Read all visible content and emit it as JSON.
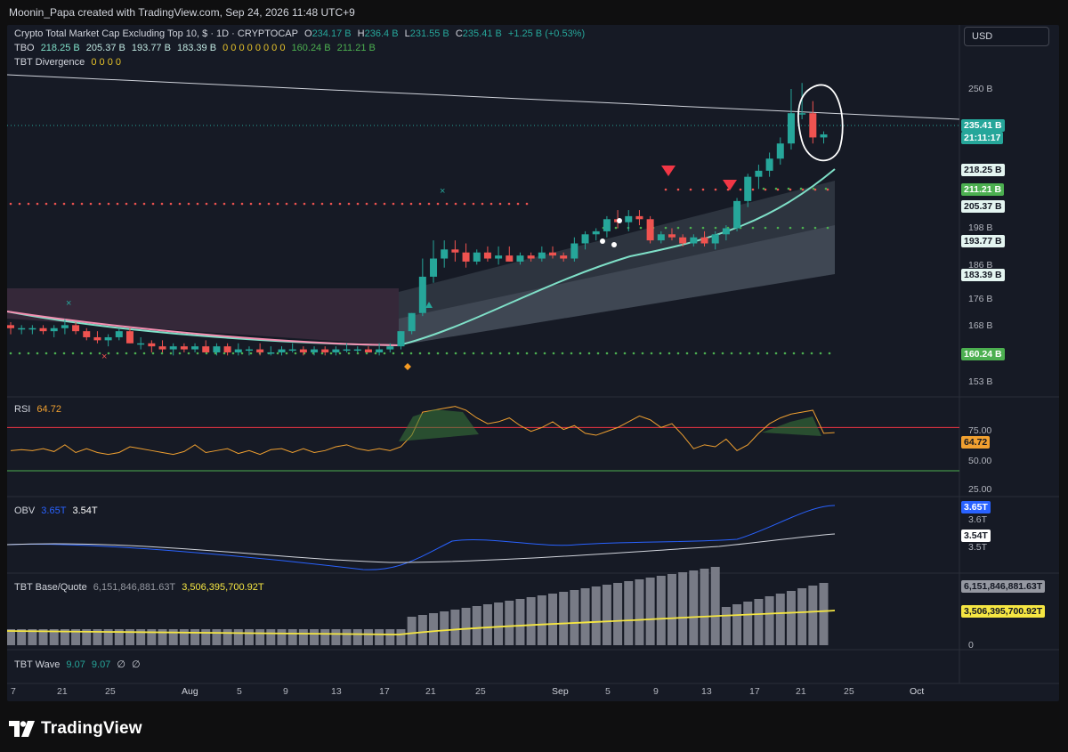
{
  "header": {
    "credit": "Moonin_Papa created with TradingView.com, Sep 24, 2026 11:48 UTC+9"
  },
  "symbol": {
    "name": "Crypto Total Market Cap Excluding Top 10, $ · 1D · CRYPTOCAP",
    "o_label": "O",
    "o": "234.17 B",
    "h_label": "H",
    "h": "236.4 B",
    "l_label": "L",
    "l": "231.55 B",
    "c_label": "C",
    "c": "235.41 B",
    "change": "+1.25 B (+0.53%)"
  },
  "tbo": {
    "label": "TBO",
    "v1": "218.25 B",
    "v2": "205.37 B",
    "v3": "193.77 B",
    "v4": "183.39 B",
    "zeros": "0 0 0 0 0 0 0 0",
    "v5": "160.24 B",
    "v6": "211.21 B"
  },
  "tbt_div": {
    "label": "TBT Divergence",
    "zeros": "0 0 0 0"
  },
  "currency_button": "USD",
  "price_axis": [
    "250 B",
    "198 B",
    "186 B",
    "176 B",
    "168 B",
    "153 B"
  ],
  "price_tags": {
    "last": "235.41 B",
    "countdown": "21:11:17",
    "t1": "218.25 B",
    "t2": "211.21 B",
    "t3": "205.37 B",
    "t4": "193.77 B",
    "t5": "183.39 B",
    "t6": "160.24 B"
  },
  "rsi": {
    "label": "RSI",
    "value": "64.72",
    "axis": [
      "75.00",
      "50.00",
      "25.00"
    ],
    "tag": "64.72"
  },
  "obv": {
    "label": "OBV",
    "v1": "3.65T",
    "v2": "3.54T",
    "axis": [
      "3.6T",
      "3.5T"
    ],
    "tag1": "3.65T",
    "tag2": "3.54T"
  },
  "basequote": {
    "label": "TBT Base/Quote",
    "v1": "6,151,846,881.63T",
    "v2": "3,506,395,700.92T",
    "tag1": "6,151,846,881.63T",
    "tag2": "3,506,395,700.92T",
    "axis_zero": "0"
  },
  "wave": {
    "label": "TBT Wave",
    "v1": "9.07",
    "v2": "9.07",
    "v3": "∅",
    "v4": "∅"
  },
  "time_axis": [
    "7",
    "21",
    "25",
    "Aug",
    "5",
    "9",
    "13",
    "17",
    "21",
    "25",
    "Sep",
    "5",
    "9",
    "13",
    "17",
    "21",
    "25",
    "Oct"
  ],
  "brand": "TradingView",
  "colors": {
    "up": "#26a69a",
    "down": "#ef5350",
    "rsi": "#f0a030",
    "obv": "#2962ff",
    "yellow": "#f5e642",
    "bg": "#161a25"
  },
  "chart_data": {
    "type": "candlestick",
    "candles": [
      {
        "o": 172,
        "h": 173,
        "l": 169,
        "c": 171
      },
      {
        "o": 171,
        "h": 172,
        "l": 169,
        "c": 171
      },
      {
        "o": 171,
        "h": 172,
        "l": 169,
        "c": 171
      },
      {
        "o": 171,
        "h": 172,
        "l": 169,
        "c": 170
      },
      {
        "o": 170,
        "h": 172,
        "l": 168,
        "c": 171
      },
      {
        "o": 171,
        "h": 174,
        "l": 169,
        "c": 172
      },
      {
        "o": 172,
        "h": 173,
        "l": 169,
        "c": 170
      },
      {
        "o": 170,
        "h": 171,
        "l": 167,
        "c": 168
      },
      {
        "o": 168,
        "h": 170,
        "l": 166,
        "c": 167
      },
      {
        "o": 167,
        "h": 169,
        "l": 165,
        "c": 168
      },
      {
        "o": 168,
        "h": 171,
        "l": 167,
        "c": 170
      },
      {
        "o": 170,
        "h": 171,
        "l": 166,
        "c": 166
      },
      {
        "o": 166,
        "h": 168,
        "l": 164,
        "c": 166
      },
      {
        "o": 166,
        "h": 167,
        "l": 163,
        "c": 165
      },
      {
        "o": 165,
        "h": 167,
        "l": 163,
        "c": 164
      },
      {
        "o": 164,
        "h": 166,
        "l": 162,
        "c": 165
      },
      {
        "o": 165,
        "h": 166,
        "l": 163,
        "c": 164
      },
      {
        "o": 164,
        "h": 166,
        "l": 163,
        "c": 165
      },
      {
        "o": 165,
        "h": 167,
        "l": 163,
        "c": 163
      },
      {
        "o": 163,
        "h": 166,
        "l": 162,
        "c": 165
      },
      {
        "o": 165,
        "h": 166,
        "l": 162,
        "c": 163
      },
      {
        "o": 163,
        "h": 166,
        "l": 162,
        "c": 164
      },
      {
        "o": 164,
        "h": 165,
        "l": 162,
        "c": 164
      },
      {
        "o": 164,
        "h": 166,
        "l": 162,
        "c": 163
      },
      {
        "o": 163,
        "h": 165,
        "l": 162,
        "c": 163
      },
      {
        "o": 163,
        "h": 165,
        "l": 162,
        "c": 164
      },
      {
        "o": 164,
        "h": 166,
        "l": 163,
        "c": 164
      },
      {
        "o": 164,
        "h": 165,
        "l": 162,
        "c": 163
      },
      {
        "o": 163,
        "h": 165,
        "l": 162,
        "c": 164
      },
      {
        "o": 164,
        "h": 165,
        "l": 162,
        "c": 163
      },
      {
        "o": 163,
        "h": 165,
        "l": 162,
        "c": 164
      },
      {
        "o": 164,
        "h": 166,
        "l": 163,
        "c": 164
      },
      {
        "o": 164,
        "h": 165,
        "l": 163,
        "c": 164
      },
      {
        "o": 164,
        "h": 165,
        "l": 163,
        "c": 163
      },
      {
        "o": 163,
        "h": 166,
        "l": 162,
        "c": 164
      },
      {
        "o": 164,
        "h": 166,
        "l": 163,
        "c": 165
      },
      {
        "o": 165,
        "h": 170,
        "l": 164,
        "c": 170
      },
      {
        "o": 170,
        "h": 176,
        "l": 169,
        "c": 176
      },
      {
        "o": 176,
        "h": 194,
        "l": 175,
        "c": 188
      },
      {
        "o": 188,
        "h": 200,
        "l": 186,
        "c": 194
      },
      {
        "o": 194,
        "h": 200,
        "l": 191,
        "c": 197
      },
      {
        "o": 197,
        "h": 200,
        "l": 193,
        "c": 196
      },
      {
        "o": 196,
        "h": 199,
        "l": 191,
        "c": 193
      },
      {
        "o": 193,
        "h": 197,
        "l": 192,
        "c": 196
      },
      {
        "o": 196,
        "h": 198,
        "l": 193,
        "c": 194
      },
      {
        "o": 194,
        "h": 198,
        "l": 192,
        "c": 195
      },
      {
        "o": 195,
        "h": 198,
        "l": 193,
        "c": 193
      },
      {
        "o": 193,
        "h": 196,
        "l": 192,
        "c": 195
      },
      {
        "o": 195,
        "h": 196,
        "l": 193,
        "c": 194
      },
      {
        "o": 194,
        "h": 198,
        "l": 193,
        "c": 196
      },
      {
        "o": 196,
        "h": 198,
        "l": 194,
        "c": 195
      },
      {
        "o": 195,
        "h": 196,
        "l": 193,
        "c": 194
      },
      {
        "o": 194,
        "h": 201,
        "l": 193,
        "c": 199
      },
      {
        "o": 199,
        "h": 203,
        "l": 197,
        "c": 202
      },
      {
        "o": 202,
        "h": 204,
        "l": 200,
        "c": 203
      },
      {
        "o": 203,
        "h": 208,
        "l": 201,
        "c": 207
      },
      {
        "o": 207,
        "h": 210,
        "l": 204,
        "c": 206
      },
      {
        "o": 206,
        "h": 210,
        "l": 203,
        "c": 208
      },
      {
        "o": 208,
        "h": 210,
        "l": 205,
        "c": 207
      },
      {
        "o": 207,
        "h": 208,
        "l": 199,
        "c": 200
      },
      {
        "o": 200,
        "h": 203,
        "l": 199,
        "c": 202
      },
      {
        "o": 202,
        "h": 204,
        "l": 200,
        "c": 201
      },
      {
        "o": 201,
        "h": 202,
        "l": 198,
        "c": 199
      },
      {
        "o": 199,
        "h": 202,
        "l": 198,
        "c": 201
      },
      {
        "o": 201,
        "h": 203,
        "l": 198,
        "c": 199
      },
      {
        "o": 199,
        "h": 203,
        "l": 197,
        "c": 202
      },
      {
        "o": 202,
        "h": 205,
        "l": 200,
        "c": 204
      },
      {
        "o": 204,
        "h": 214,
        "l": 203,
        "c": 213
      },
      {
        "o": 213,
        "h": 222,
        "l": 211,
        "c": 221
      },
      {
        "o": 221,
        "h": 225,
        "l": 217,
        "c": 223
      },
      {
        "o": 223,
        "h": 229,
        "l": 221,
        "c": 227
      },
      {
        "o": 227,
        "h": 234,
        "l": 225,
        "c": 232
      },
      {
        "o": 232,
        "h": 250,
        "l": 230,
        "c": 242
      },
      {
        "o": 242,
        "h": 252,
        "l": 240,
        "c": 242
      },
      {
        "o": 242,
        "h": 246,
        "l": 232,
        "c": 234
      },
      {
        "o": 234,
        "h": 236,
        "l": 232,
        "c": 235
      }
    ],
    "rsi_current": 64.72,
    "obv_current": [
      "3.65T",
      "3.54T"
    ]
  }
}
